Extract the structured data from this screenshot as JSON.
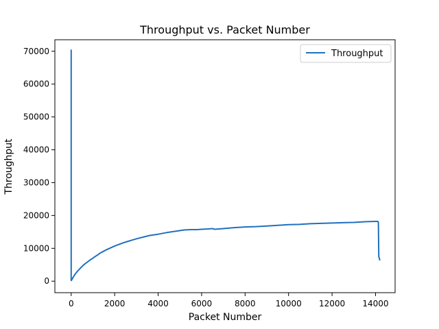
{
  "chart_data": {
    "type": "line",
    "title": "Throughput vs. Packet Number",
    "xlabel": "Packet Number",
    "ylabel": "Throughput",
    "xlim": [
      -750,
      14900
    ],
    "ylim": [
      -3500,
      73500
    ],
    "xticks": [
      0,
      2000,
      4000,
      6000,
      8000,
      10000,
      12000,
      14000
    ],
    "yticks": [
      0,
      10000,
      20000,
      30000,
      40000,
      50000,
      60000,
      70000
    ],
    "grid": false,
    "legend_position": "top-right",
    "series": [
      {
        "name": "Throughput",
        "color": "#1f6fbf",
        "x": [
          0,
          0,
          10,
          30,
          60,
          100,
          150,
          200,
          300,
          400,
          500,
          600,
          700,
          800,
          900,
          1000,
          1100,
          1200,
          1300,
          1400,
          1600,
          1800,
          2000,
          2200,
          2400,
          2600,
          2800,
          3000,
          3300,
          3600,
          4000,
          4400,
          4800,
          5200,
          5500,
          5800,
          6000,
          6300,
          6500,
          6600,
          7000,
          7500,
          8000,
          8500,
          9000,
          9500,
          10000,
          10500,
          11000,
          11500,
          12000,
          12500,
          13000,
          13500,
          14000,
          14100,
          14130,
          14150,
          14180,
          14200
        ],
        "y": [
          70500,
          300,
          200,
          500,
          800,
          1300,
          1800,
          2300,
          3100,
          3800,
          4500,
          5100,
          5600,
          6100,
          6600,
          7000,
          7500,
          7900,
          8400,
          8800,
          9500,
          10100,
          10700,
          11200,
          11700,
          12100,
          12500,
          12900,
          13400,
          13900,
          14300,
          14800,
          15200,
          15600,
          15700,
          15700,
          15800,
          15900,
          16000,
          15800,
          16000,
          16300,
          16500,
          16600,
          16800,
          17000,
          17200,
          17300,
          17500,
          17600,
          17700,
          17800,
          17900,
          18100,
          18200,
          18200,
          18000,
          7500,
          6800,
          6300
        ]
      }
    ]
  }
}
